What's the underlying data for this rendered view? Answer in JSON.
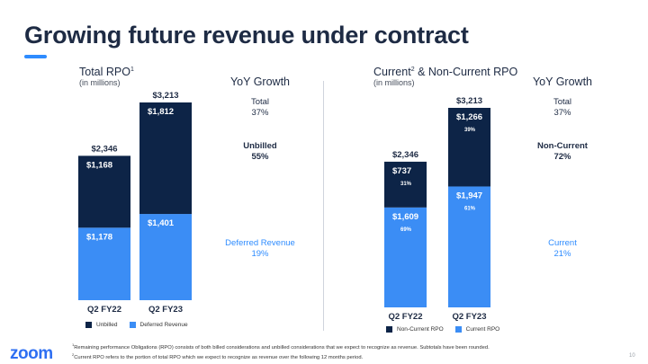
{
  "title": "Growing future revenue under contract",
  "left": {
    "header": "Total RPO",
    "header_sup": "1",
    "sub": "(in millions)",
    "yoy_title": "YoY Growth",
    "stats": [
      {
        "label": "Total",
        "value": "37%"
      },
      {
        "label": "Unbilled",
        "value": "55%"
      },
      {
        "label": "Deferred Revenue",
        "value": "19%"
      }
    ],
    "legend": [
      {
        "label": "Unbilled",
        "color": "#0d2447"
      },
      {
        "label": "Deferred Revenue",
        "color": "#3b8df5"
      }
    ]
  },
  "right": {
    "header": "Current",
    "header_sup": "2",
    "header_rest": " & Non-Current RPO",
    "sub": "(in millions)",
    "yoy_title": "YoY Growth",
    "stats": [
      {
        "label": "Total",
        "value": "37%"
      },
      {
        "label": "Non-Current",
        "value": "72%"
      },
      {
        "label": "Current",
        "value": "21%"
      }
    ],
    "legend": [
      {
        "label": "Non-Current RPO",
        "color": "#0d2447"
      },
      {
        "label": "Current RPO",
        "color": "#3b8df5"
      }
    ]
  },
  "chart_data": [
    {
      "type": "bar",
      "stacked": true,
      "title": "Total RPO",
      "categories": [
        "Q2 FY22",
        "Q2 FY23"
      ],
      "totals": [
        "$2,346",
        "$3,213"
      ],
      "series": [
        {
          "name": "Deferred Revenue",
          "values": [
            1178,
            1401
          ],
          "labels": [
            "$1,178",
            "$1,401"
          ],
          "pct": [
            "",
            ""
          ]
        },
        {
          "name": "Unbilled",
          "values": [
            1168,
            1812
          ],
          "labels": [
            "$1,168",
            "$1,812"
          ],
          "pct": [
            "",
            ""
          ]
        }
      ],
      "ylim": [
        0,
        3213
      ]
    },
    {
      "type": "bar",
      "stacked": true,
      "title": "Current & Non-Current RPO",
      "categories": [
        "Q2 FY22",
        "Q2 FY23"
      ],
      "totals": [
        "$2,346",
        "$3,213"
      ],
      "series": [
        {
          "name": "Current RPO",
          "values": [
            1609,
            1947
          ],
          "labels": [
            "$1,609",
            "$1,947"
          ],
          "pct": [
            "69%",
            "61%"
          ]
        },
        {
          "name": "Non-Current RPO",
          "values": [
            737,
            1266
          ],
          "labels": [
            "$737",
            "$1,266"
          ],
          "pct": [
            "31%",
            "39%"
          ]
        }
      ],
      "ylim": [
        0,
        3213
      ]
    }
  ],
  "footnotes": [
    {
      "sup": "1",
      "text": "Remaining performance Obligations (RPO) consists of both billed considerations and unbilled considerations that we expect to recognize as revenue. Subtotals have been rounded."
    },
    {
      "sup": "2",
      "text": "Current RPO refers to the portion of total RPO which we expect to recognize as revenue over the following 12 months period."
    }
  ],
  "logo": "zoom",
  "page_number": "10",
  "colors": {
    "dark": "#0d2447",
    "light": "#3b8df5",
    "accent": "#2e8cff"
  }
}
